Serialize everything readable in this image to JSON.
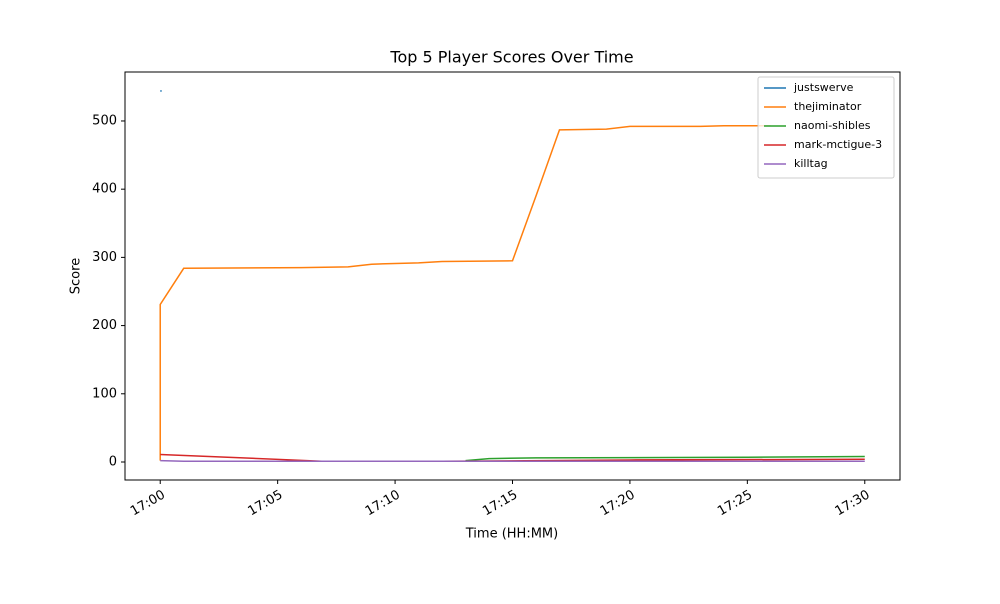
{
  "chart_data": {
    "type": "line",
    "title": "Top 5 Player Scores Over Time",
    "x_label": "Time (HH:MM)",
    "y_label": "Score",
    "xlim": [
      "16:58:30",
      "17:31:30"
    ],
    "xticks": [
      "17:00",
      "17:05",
      "17:10",
      "17:15",
      "17:20",
      "17:25",
      "17:30"
    ],
    "ylim": [
      -26.4,
      571.8
    ],
    "yticks": [
      0,
      100,
      200,
      300,
      400,
      500
    ],
    "legend": "upper right",
    "series": [
      {
        "name": "justswerve",
        "color": "#1f77b4",
        "x": [
          "17:00"
        ],
        "values": [
          544
        ]
      },
      {
        "name": "thejiminator",
        "color": "#ff7f0e",
        "x": [
          "17:00",
          "17:00",
          "17:01",
          "17:06",
          "17:08",
          "17:09",
          "17:11",
          "17:12",
          "17:15",
          "17:16",
          "17:17",
          "17:19",
          "17:20",
          "17:23",
          "17:24",
          "17:26"
        ],
        "values": [
          2,
          231,
          284,
          285,
          286,
          290,
          292,
          294,
          295,
          390,
          487,
          488,
          492,
          492,
          493,
          493
        ]
      },
      {
        "name": "naomi-shibles",
        "color": "#2ca02c",
        "x": [
          "17:13",
          "17:14",
          "17:16",
          "17:25",
          "17:30"
        ],
        "values": [
          2,
          5,
          6,
          7,
          8
        ]
      },
      {
        "name": "mark-mctigue-3",
        "color": "#d62728",
        "x": [
          "17:00",
          "17:07",
          "17:12",
          "17:20",
          "17:30"
        ],
        "values": [
          11,
          1,
          1,
          3,
          4
        ]
      },
      {
        "name": "killtag",
        "color": "#9467bd",
        "x": [
          "17:00",
          "17:01",
          "17:30"
        ],
        "values": [
          2,
          1,
          1
        ]
      }
    ]
  }
}
